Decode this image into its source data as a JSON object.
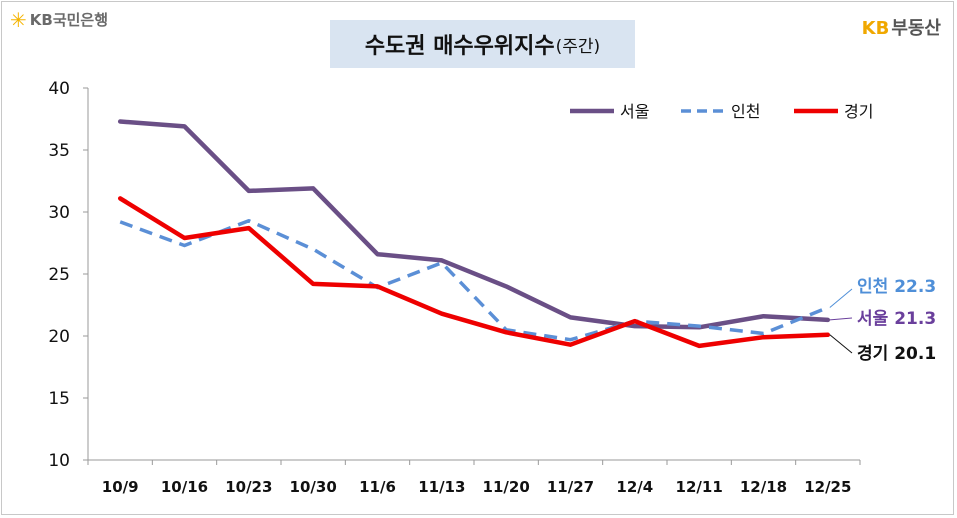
{
  "header": {
    "left_logo_text": "KB국민은행",
    "right_logo_kb": "KB",
    "right_logo_text": "부동산"
  },
  "chart_data": {
    "type": "line",
    "title": "수도권 매수우위지수",
    "title_suffix": "(주간)",
    "categories": [
      "10/9",
      "10/16",
      "10/23",
      "10/30",
      "11/6",
      "11/13",
      "11/20",
      "11/27",
      "12/4",
      "12/11",
      "12/18",
      "12/25"
    ],
    "ylim": [
      10,
      40
    ],
    "yticks": [
      10,
      15,
      20,
      25,
      30,
      35,
      40
    ],
    "grid": false,
    "legend_position": "top-right",
    "series": [
      {
        "name": "서울",
        "color": "#6a4f86",
        "style": "solid",
        "values": [
          37.3,
          36.9,
          31.7,
          31.9,
          26.6,
          26.1,
          24.0,
          21.5,
          20.8,
          20.7,
          21.6,
          21.3
        ],
        "end_label": "서울",
        "end_value": "21.3"
      },
      {
        "name": "인천",
        "color": "#5b8fd6",
        "style": "dashed",
        "values": [
          29.2,
          27.3,
          29.3,
          27.0,
          23.9,
          25.9,
          20.5,
          19.7,
          21.2,
          20.8,
          20.2,
          22.3
        ],
        "end_label": "인천",
        "end_value": "22.3"
      },
      {
        "name": "경기",
        "color": "#ee0000",
        "style": "solid",
        "values": [
          31.1,
          27.9,
          28.7,
          24.2,
          24.0,
          21.8,
          20.3,
          19.3,
          21.2,
          19.2,
          19.9,
          20.1
        ],
        "end_label": "경기",
        "end_value": "20.1"
      }
    ],
    "end_label_colors": {
      "서울": "#6a3f9c",
      "인천": "#4f8fd8",
      "경기": "#111111"
    }
  }
}
